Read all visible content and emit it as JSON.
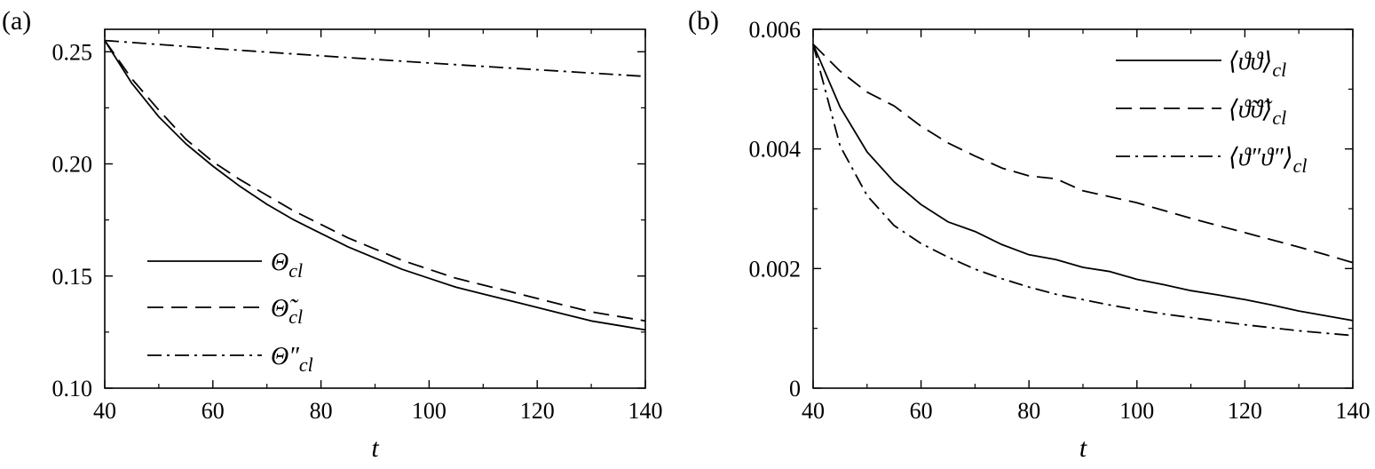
{
  "chart_data": [
    {
      "type": "line",
      "panel_label": "(a)",
      "xlabel": "t",
      "ylabel": "",
      "xlim": [
        40,
        140
      ],
      "ylim": [
        0.1,
        0.26
      ],
      "xticks": [
        40,
        60,
        80,
        100,
        120,
        140
      ],
      "xtick_labels": [
        "40",
        "60",
        "80",
        "100",
        "120",
        "140"
      ],
      "yticks": [
        0.1,
        0.15,
        0.2,
        0.25
      ],
      "ytick_labels": [
        "0.10",
        "0.15",
        "0.20",
        "0.25"
      ],
      "grid": false,
      "legend_position": "lower-left",
      "series": [
        {
          "name": "Θcl",
          "style": "solid",
          "x": [
            40,
            45,
            50,
            55,
            60,
            65,
            70,
            75,
            80,
            85,
            90,
            95,
            100,
            105,
            110,
            115,
            120,
            125,
            130,
            135,
            140
          ],
          "y": [
            0.255,
            0.236,
            0.221,
            0.209,
            0.199,
            0.19,
            0.182,
            0.175,
            0.169,
            0.163,
            0.158,
            0.153,
            0.149,
            0.145,
            0.142,
            0.139,
            0.136,
            0.133,
            0.13,
            0.128,
            0.126
          ]
        },
        {
          "name": "Θ̃cl",
          "style": "dashed",
          "x": [
            40,
            45,
            50,
            55,
            60,
            65,
            70,
            75,
            80,
            85,
            90,
            95,
            100,
            105,
            110,
            115,
            120,
            125,
            130,
            135,
            140
          ],
          "y": [
            0.255,
            0.238,
            0.224,
            0.211,
            0.201,
            0.193,
            0.186,
            0.179,
            0.173,
            0.167,
            0.162,
            0.157,
            0.153,
            0.149,
            0.146,
            0.143,
            0.14,
            0.137,
            0.134,
            0.132,
            0.13
          ]
        },
        {
          "name": "Θ″cl",
          "style": "dashdot",
          "x": [
            40,
            60,
            80,
            100,
            120,
            140
          ],
          "y": [
            0.255,
            0.2515,
            0.2482,
            0.245,
            0.242,
            0.239
          ]
        }
      ],
      "legend": [
        {
          "main": "Θ",
          "sub": "cl"
        },
        {
          "main": "Θ̃",
          "sub": "cl"
        },
        {
          "main": "Θ″",
          "sub": "cl"
        }
      ]
    },
    {
      "type": "line",
      "panel_label": "(b)",
      "xlabel": "t",
      "ylabel": "",
      "xlim": [
        40,
        140
      ],
      "ylim": [
        0,
        0.006
      ],
      "xticks": [
        40,
        60,
        80,
        100,
        120,
        140
      ],
      "xtick_labels": [
        "40",
        "60",
        "80",
        "100",
        "120",
        "140"
      ],
      "yticks": [
        0,
        0.002,
        0.004,
        0.006
      ],
      "ytick_labels": [
        "0",
        "0.002",
        "0.004",
        "0.006"
      ],
      "grid": false,
      "legend_position": "top-right",
      "series": [
        {
          "name": "⟨ϑϑ⟩cl",
          "style": "solid",
          "x": [
            40,
            45,
            50,
            55,
            60,
            65,
            70,
            75,
            80,
            85,
            90,
            95,
            100,
            105,
            110,
            115,
            120,
            125,
            130,
            135,
            140
          ],
          "y": [
            0.00575,
            0.0047,
            0.00395,
            0.00345,
            0.00307,
            0.00278,
            0.00262,
            0.0024,
            0.00223,
            0.00215,
            0.00202,
            0.00195,
            0.00182,
            0.00173,
            0.00163,
            0.00156,
            0.00148,
            0.00139,
            0.00129,
            0.00121,
            0.00113
          ]
        },
        {
          "name": "⟨ϑ̃ϑ̃⟩cl",
          "style": "dashed",
          "x": [
            40,
            45,
            50,
            55,
            60,
            65,
            70,
            75,
            80,
            85,
            90,
            95,
            100,
            105,
            110,
            115,
            120,
            125,
            130,
            135,
            140
          ],
          "y": [
            0.00575,
            0.0053,
            0.00495,
            0.00472,
            0.00438,
            0.0041,
            0.00388,
            0.00368,
            0.00355,
            0.0035,
            0.0033,
            0.0032,
            0.0031,
            0.00297,
            0.00284,
            0.00272,
            0.0026,
            0.00248,
            0.00236,
            0.00223,
            0.0021
          ]
        },
        {
          "name": "⟨ϑ″ϑ″⟩cl",
          "style": "dashdot",
          "x": [
            40,
            45,
            50,
            55,
            60,
            65,
            70,
            75,
            80,
            85,
            90,
            95,
            100,
            105,
            110,
            115,
            120,
            125,
            130,
            135,
            140
          ],
          "y": [
            0.00575,
            0.00405,
            0.00322,
            0.00272,
            0.00242,
            0.00219,
            0.00199,
            0.00183,
            0.00169,
            0.00157,
            0.00148,
            0.00139,
            0.00131,
            0.00124,
            0.00118,
            0.00112,
            0.00106,
            0.00101,
            0.00096,
            0.00092,
            0.00088
          ]
        }
      ],
      "legend": [
        {
          "main": "⟨ϑϑ⟩",
          "sub": "cl"
        },
        {
          "main": "⟨ϑ̃ϑ̃⟩",
          "sub": "cl"
        },
        {
          "main": "⟨ϑ″ϑ″⟩",
          "sub": "cl"
        }
      ]
    }
  ]
}
